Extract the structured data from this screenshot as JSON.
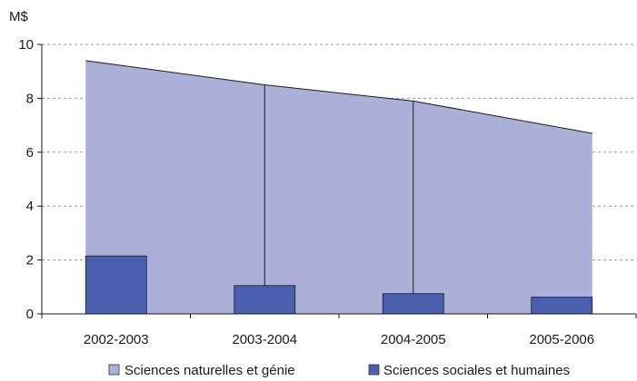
{
  "chart_data": {
    "type": "area",
    "ylabel": "M$",
    "ylim": [
      0,
      10
    ],
    "yticks": [
      0,
      2,
      4,
      6,
      8,
      10
    ],
    "grid": "horizontal-dashed",
    "legend_position": "bottom",
    "categories": [
      "2002-2003",
      "2003-2004",
      "2004-2005",
      "2005-2006"
    ],
    "series": [
      {
        "name": "Sciences naturelles et génie",
        "type": "area",
        "color": "#aab0d8",
        "values": [
          9.4,
          8.5,
          7.9,
          6.7
        ]
      },
      {
        "name": "Sciences sociales et humaines",
        "type": "bar",
        "color": "#4a5fad",
        "values": [
          2.15,
          1.05,
          0.75,
          0.62
        ]
      }
    ]
  }
}
